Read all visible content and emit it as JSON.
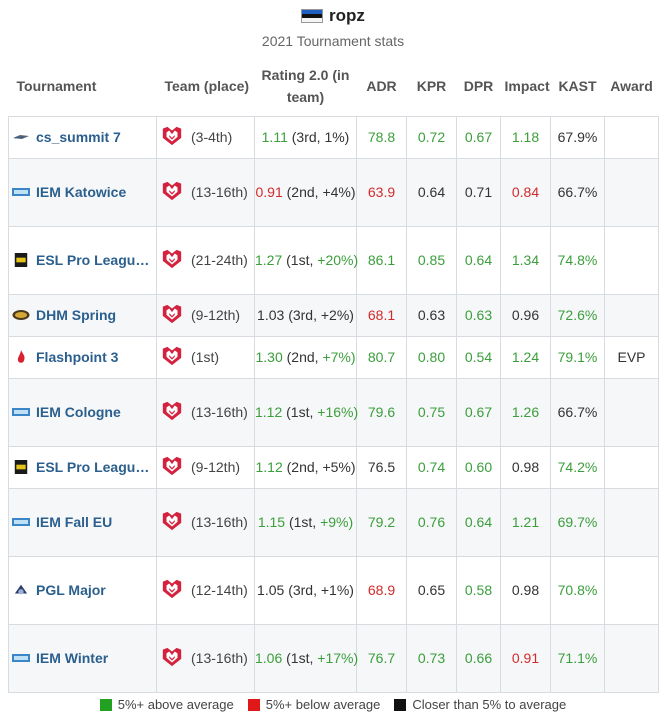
{
  "header": {
    "player_name": "ropz",
    "subtitle": "2021 Tournament stats",
    "flag_icon": "estonia-flag-icon"
  },
  "columns": [
    "Tournament",
    "Team (place)",
    "Rating 2.0 (in team)",
    "ADR",
    "KPR",
    "DPR",
    "Impact",
    "KAST",
    "Award"
  ],
  "rows": [
    {
      "tournament": "cs_summit 7",
      "icon": "cs-summit-icon",
      "place": "(3-4th)",
      "rating_main": "1.11",
      "rating_main_c": "g",
      "rating_rank": "(3rd,",
      "rating_pct": "1%)",
      "rating_pct_c": "n",
      "adr": "78.8",
      "adr_c": "g",
      "kpr": "0.72",
      "kpr_c": "g",
      "dpr": "0.67",
      "dpr_c": "g",
      "impact": "1.18",
      "impact_c": "g",
      "kast": "67.9%",
      "kast_c": "n",
      "award": "",
      "height": 42
    },
    {
      "tournament": "IEM Katowice",
      "icon": "iem-icon",
      "place": "(13-16th)",
      "rating_main": "0.91",
      "rating_main_c": "r",
      "rating_rank": "(2nd,",
      "rating_pct": "+4%)",
      "rating_pct_c": "n",
      "adr": "63.9",
      "adr_c": "r",
      "kpr": "0.64",
      "kpr_c": "n",
      "dpr": "0.71",
      "dpr_c": "n",
      "impact": "0.84",
      "impact_c": "r",
      "kast": "66.7%",
      "kast_c": "n",
      "award": "",
      "height": 68
    },
    {
      "tournament": "ESL Pro League S...",
      "icon": "esl-pro-league-icon",
      "place": "(21-24th)",
      "rating_main": "1.27",
      "rating_main_c": "g",
      "rating_rank": "(1st,",
      "rating_pct": "+20%)",
      "rating_pct_c": "g",
      "adr": "86.1",
      "adr_c": "g",
      "kpr": "0.85",
      "kpr_c": "g",
      "dpr": "0.64",
      "dpr_c": "g",
      "impact": "1.34",
      "impact_c": "g",
      "kast": "74.8%",
      "kast_c": "g",
      "award": "",
      "height": 68
    },
    {
      "tournament": "DHM Spring",
      "icon": "dhm-icon",
      "place": "(9-12th)",
      "rating_main": "1.03",
      "rating_main_c": "n",
      "rating_rank": "(3rd,",
      "rating_pct": "+2%)",
      "rating_pct_c": "n",
      "adr": "68.1",
      "adr_c": "r",
      "kpr": "0.63",
      "kpr_c": "n",
      "dpr": "0.63",
      "dpr_c": "g",
      "impact": "0.96",
      "impact_c": "n",
      "kast": "72.6%",
      "kast_c": "g",
      "award": "",
      "height": 42
    },
    {
      "tournament": "Flashpoint 3",
      "icon": "flashpoint-icon",
      "place": "(1st)",
      "rating_main": "1.30",
      "rating_main_c": "g",
      "rating_rank": "(2nd,",
      "rating_pct": "+7%)",
      "rating_pct_c": "g",
      "adr": "80.7",
      "adr_c": "g",
      "kpr": "0.80",
      "kpr_c": "g",
      "dpr": "0.54",
      "dpr_c": "g",
      "impact": "1.24",
      "impact_c": "g",
      "kast": "79.1%",
      "kast_c": "g",
      "award": "EVP",
      "height": 42
    },
    {
      "tournament": "IEM Cologne",
      "icon": "iem-icon",
      "place": "(13-16th)",
      "rating_main": "1.12",
      "rating_main_c": "g",
      "rating_rank": "(1st,",
      "rating_pct": "+16%)",
      "rating_pct_c": "g",
      "adr": "79.6",
      "adr_c": "g",
      "kpr": "0.75",
      "kpr_c": "g",
      "dpr": "0.67",
      "dpr_c": "g",
      "impact": "1.26",
      "impact_c": "g",
      "kast": "66.7%",
      "kast_c": "n",
      "award": "",
      "height": 68
    },
    {
      "tournament": "ESL Pro League S...",
      "icon": "esl-pro-league-icon",
      "place": "(9-12th)",
      "rating_main": "1.12",
      "rating_main_c": "g",
      "rating_rank": "(2nd,",
      "rating_pct": "+5%)",
      "rating_pct_c": "n",
      "adr": "76.5",
      "adr_c": "n",
      "kpr": "0.74",
      "kpr_c": "g",
      "dpr": "0.60",
      "dpr_c": "g",
      "impact": "0.98",
      "impact_c": "n",
      "kast": "74.2%",
      "kast_c": "g",
      "award": "",
      "height": 42
    },
    {
      "tournament": "IEM Fall EU",
      "icon": "iem-icon",
      "place": "(13-16th)",
      "rating_main": "1.15",
      "rating_main_c": "g",
      "rating_rank": "(1st,",
      "rating_pct": "+9%)",
      "rating_pct_c": "g",
      "adr": "79.2",
      "adr_c": "g",
      "kpr": "0.76",
      "kpr_c": "g",
      "dpr": "0.64",
      "dpr_c": "g",
      "impact": "1.21",
      "impact_c": "g",
      "kast": "69.7%",
      "kast_c": "g",
      "award": "",
      "height": 68
    },
    {
      "tournament": "PGL Major",
      "icon": "pgl-major-icon",
      "place": "(12-14th)",
      "rating_main": "1.05",
      "rating_main_c": "n",
      "rating_rank": "(3rd,",
      "rating_pct": "+1%)",
      "rating_pct_c": "n",
      "adr": "68.9",
      "adr_c": "r",
      "kpr": "0.65",
      "kpr_c": "n",
      "dpr": "0.58",
      "dpr_c": "g",
      "impact": "0.98",
      "impact_c": "n",
      "kast": "70.8%",
      "kast_c": "g",
      "award": "",
      "height": 68
    },
    {
      "tournament": "IEM Winter",
      "icon": "iem-icon",
      "place": "(13-16th)",
      "rating_main": "1.06",
      "rating_main_c": "g",
      "rating_rank": "(1st,",
      "rating_pct": "+17%)",
      "rating_pct_c": "g",
      "adr": "76.7",
      "adr_c": "g",
      "kpr": "0.73",
      "kpr_c": "g",
      "dpr": "0.66",
      "dpr_c": "g",
      "impact": "0.91",
      "impact_c": "r",
      "kast": "71.1%",
      "kast_c": "g",
      "award": "",
      "height": 68
    }
  ],
  "legend": [
    {
      "label": "5%+ above average",
      "color": "#22a022"
    },
    {
      "label": "5%+ below average",
      "color": "#e01818"
    },
    {
      "label": "Closer than 5% to average",
      "color": "#111111"
    }
  ],
  "colors": {
    "green": "#3b9e3b",
    "red": "#d22b2b",
    "link": "#2b5f8d",
    "team_logo": "#d4213d"
  }
}
